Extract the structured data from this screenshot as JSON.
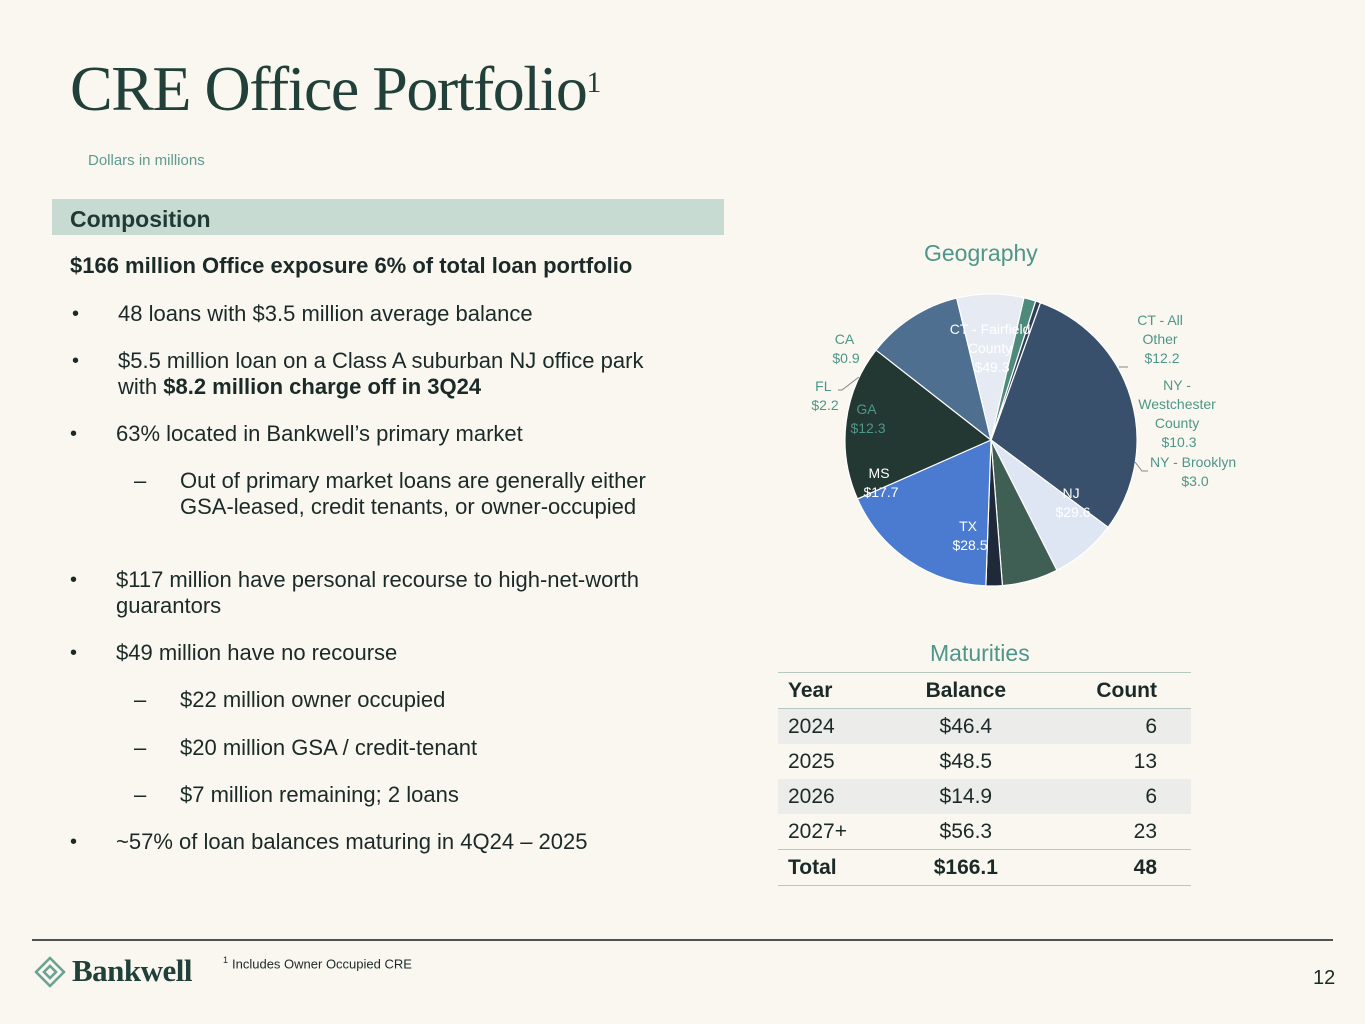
{
  "title": "CRE Office Portfolio",
  "title_superscript": "1",
  "subtitle": "Dollars in millions",
  "composition": {
    "header": "Composition",
    "headline": "$166 million Office exposure 6% of total loan portfolio",
    "bullets": {
      "b1": "48 loans with $3.5 million average balance",
      "b2_pre": "$5.5 million loan on a Class A suburban NJ office park with ",
      "b2_bold": "$8.2 million charge off in 3Q24",
      "b3": "63% located in Bankwell’s primary market",
      "b3_sub": "Out of primary market loans are generally either GSA-leased, credit tenants, or owner-occupied",
      "b4": "$117 million have personal recourse to high-net-worth guarantors",
      "b5": "$49 million have no recourse",
      "b5_sub1": "$22 million owner occupied",
      "b5_sub2": "$20 million GSA / credit-tenant",
      "b5_sub3": "$7 million remaining; 2 loans",
      "b6": "~57% of loan balances maturing in 4Q24 – 2025"
    },
    "bullet_glyph": "•",
    "dash_glyph": "–"
  },
  "chart_data": {
    "type": "pie",
    "title": "Geography",
    "slices": [
      {
        "label": "CT - Fairfield County",
        "value": 49.3,
        "value_label": "$49.3",
        "color": "#38506b"
      },
      {
        "label": "CT - All Other",
        "value": 12.2,
        "value_label": "$12.2",
        "color": "#dfe6f3"
      },
      {
        "label": "NY - Westchester County",
        "value": 10.3,
        "value_label": "$10.3",
        "color": "#3f5f55"
      },
      {
        "label": "NY - Brooklyn",
        "value": 3.0,
        "value_label": "$3.0",
        "color": "#1e2a3a"
      },
      {
        "label": "NJ",
        "value": 29.6,
        "value_label": "$29.6",
        "color": "#4a7bd0"
      },
      {
        "label": "TX",
        "value": 28.5,
        "value_label": "$28.5",
        "color": "#233833"
      },
      {
        "label": "MS",
        "value": 17.7,
        "value_label": "$17.7",
        "color": "#4e6f90"
      },
      {
        "label": "GA",
        "value": 12.3,
        "value_label": "$12.3",
        "color": "#e6ebf3"
      },
      {
        "label": "FL",
        "value": 2.2,
        "value_label": "$2.2",
        "color": "#4e8a7c"
      },
      {
        "label": "CA",
        "value": 0.9,
        "value_label": "$0.9",
        "color": "#2c3f5a"
      }
    ],
    "label_lines": {
      "ct_fairfield": [
        "CT - Fairfield",
        "County"
      ],
      "ct_other": [
        "CT - All",
        "Other"
      ],
      "ny_westchester": [
        "NY -",
        "Westchester",
        "County"
      ],
      "ny_brooklyn": [
        "NY - Brooklyn"
      ],
      "nj": [
        "NJ"
      ],
      "tx": [
        "TX"
      ],
      "ms": [
        "MS"
      ],
      "ga": [
        "GA"
      ],
      "fl": [
        "FL"
      ],
      "ca": [
        "CA"
      ]
    }
  },
  "maturities": {
    "title": "Maturities",
    "columns": [
      "Year",
      "Balance",
      "Count"
    ],
    "rows": [
      [
        "2024",
        "$46.4",
        "6"
      ],
      [
        "2025",
        "$48.5",
        "13"
      ],
      [
        "2026",
        "$14.9",
        "6"
      ],
      [
        "2027+",
        "$56.3",
        "23"
      ]
    ],
    "total": [
      "Total",
      "$166.1",
      "48"
    ]
  },
  "footer": {
    "logo_text": "Bankwell",
    "footnote_mark": "1",
    "footnote": "Includes Owner Occupied CRE",
    "page_number": "12"
  },
  "colors": {
    "title": "#21403a",
    "accent": "#4e9689",
    "composition_bar": "#c8dbd3"
  }
}
